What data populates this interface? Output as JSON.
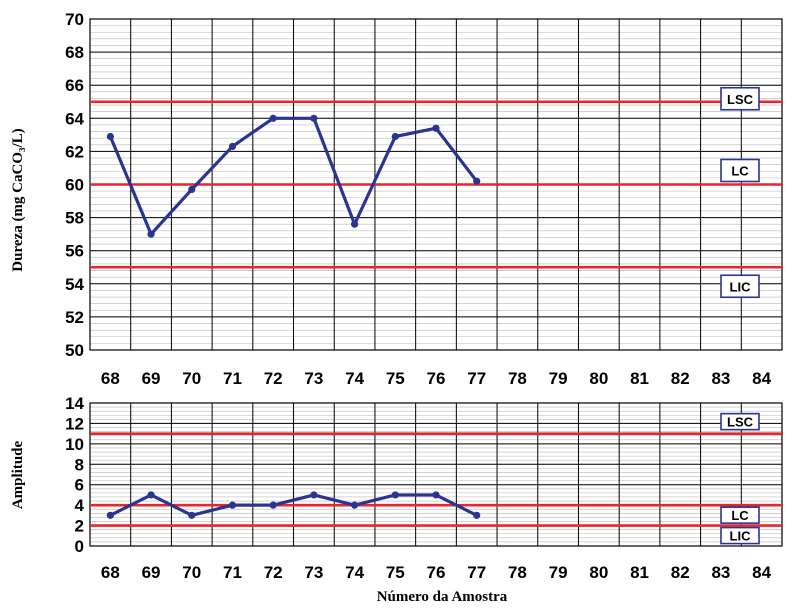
{
  "chart_data": [
    {
      "type": "line",
      "ylabel": "Dureza (mg CaCO₃/L)",
      "xlabel": "",
      "ylim": [
        50,
        70
      ],
      "yticks": [
        50,
        52,
        54,
        56,
        58,
        60,
        62,
        64,
        66,
        68,
        70
      ],
      "x_categories": [
        "68",
        "69",
        "70",
        "71",
        "72",
        "73",
        "74",
        "75",
        "76",
        "77",
        "78",
        "79",
        "80",
        "81",
        "82",
        "83",
        "84"
      ],
      "grid": true,
      "series": [
        {
          "x": [
            68,
            69,
            70,
            71,
            72,
            73,
            74,
            75,
            76,
            77
          ],
          "values": [
            62.9,
            57.0,
            59.7,
            62.3,
            64.0,
            64.0,
            57.6,
            62.9,
            63.4,
            60.2
          ]
        }
      ],
      "control_limits": [
        {
          "label": "LSC",
          "value": 65
        },
        {
          "label": "LC",
          "value": 60
        },
        {
          "label": "LIC",
          "value": 55
        }
      ],
      "colors": {
        "series": "#2b3590",
        "limit": "#e8262c",
        "grid": "#9a9a9a"
      }
    },
    {
      "type": "line",
      "ylabel": "Amplitude",
      "xlabel": "Número da Amostra",
      "ylim": [
        0,
        14
      ],
      "yticks": [
        0,
        2,
        4,
        6,
        8,
        10,
        12,
        14
      ],
      "x_categories": [
        "68",
        "69",
        "70",
        "71",
        "72",
        "73",
        "74",
        "75",
        "76",
        "77",
        "78",
        "79",
        "80",
        "81",
        "82",
        "83",
        "84"
      ],
      "grid": true,
      "series": [
        {
          "x": [
            68,
            69,
            70,
            71,
            72,
            73,
            74,
            75,
            76,
            77
          ],
          "values": [
            3,
            5,
            3,
            4,
            4,
            5,
            4,
            5,
            5,
            3
          ]
        }
      ],
      "control_limits": [
        {
          "label": "LSC",
          "value": 11
        },
        {
          "label": "LC",
          "value": 4
        },
        {
          "label": "LIC",
          "value": 2
        }
      ],
      "colors": {
        "series": "#2b3590",
        "limit": "#e8262c",
        "grid": "#9a9a9a"
      }
    }
  ]
}
